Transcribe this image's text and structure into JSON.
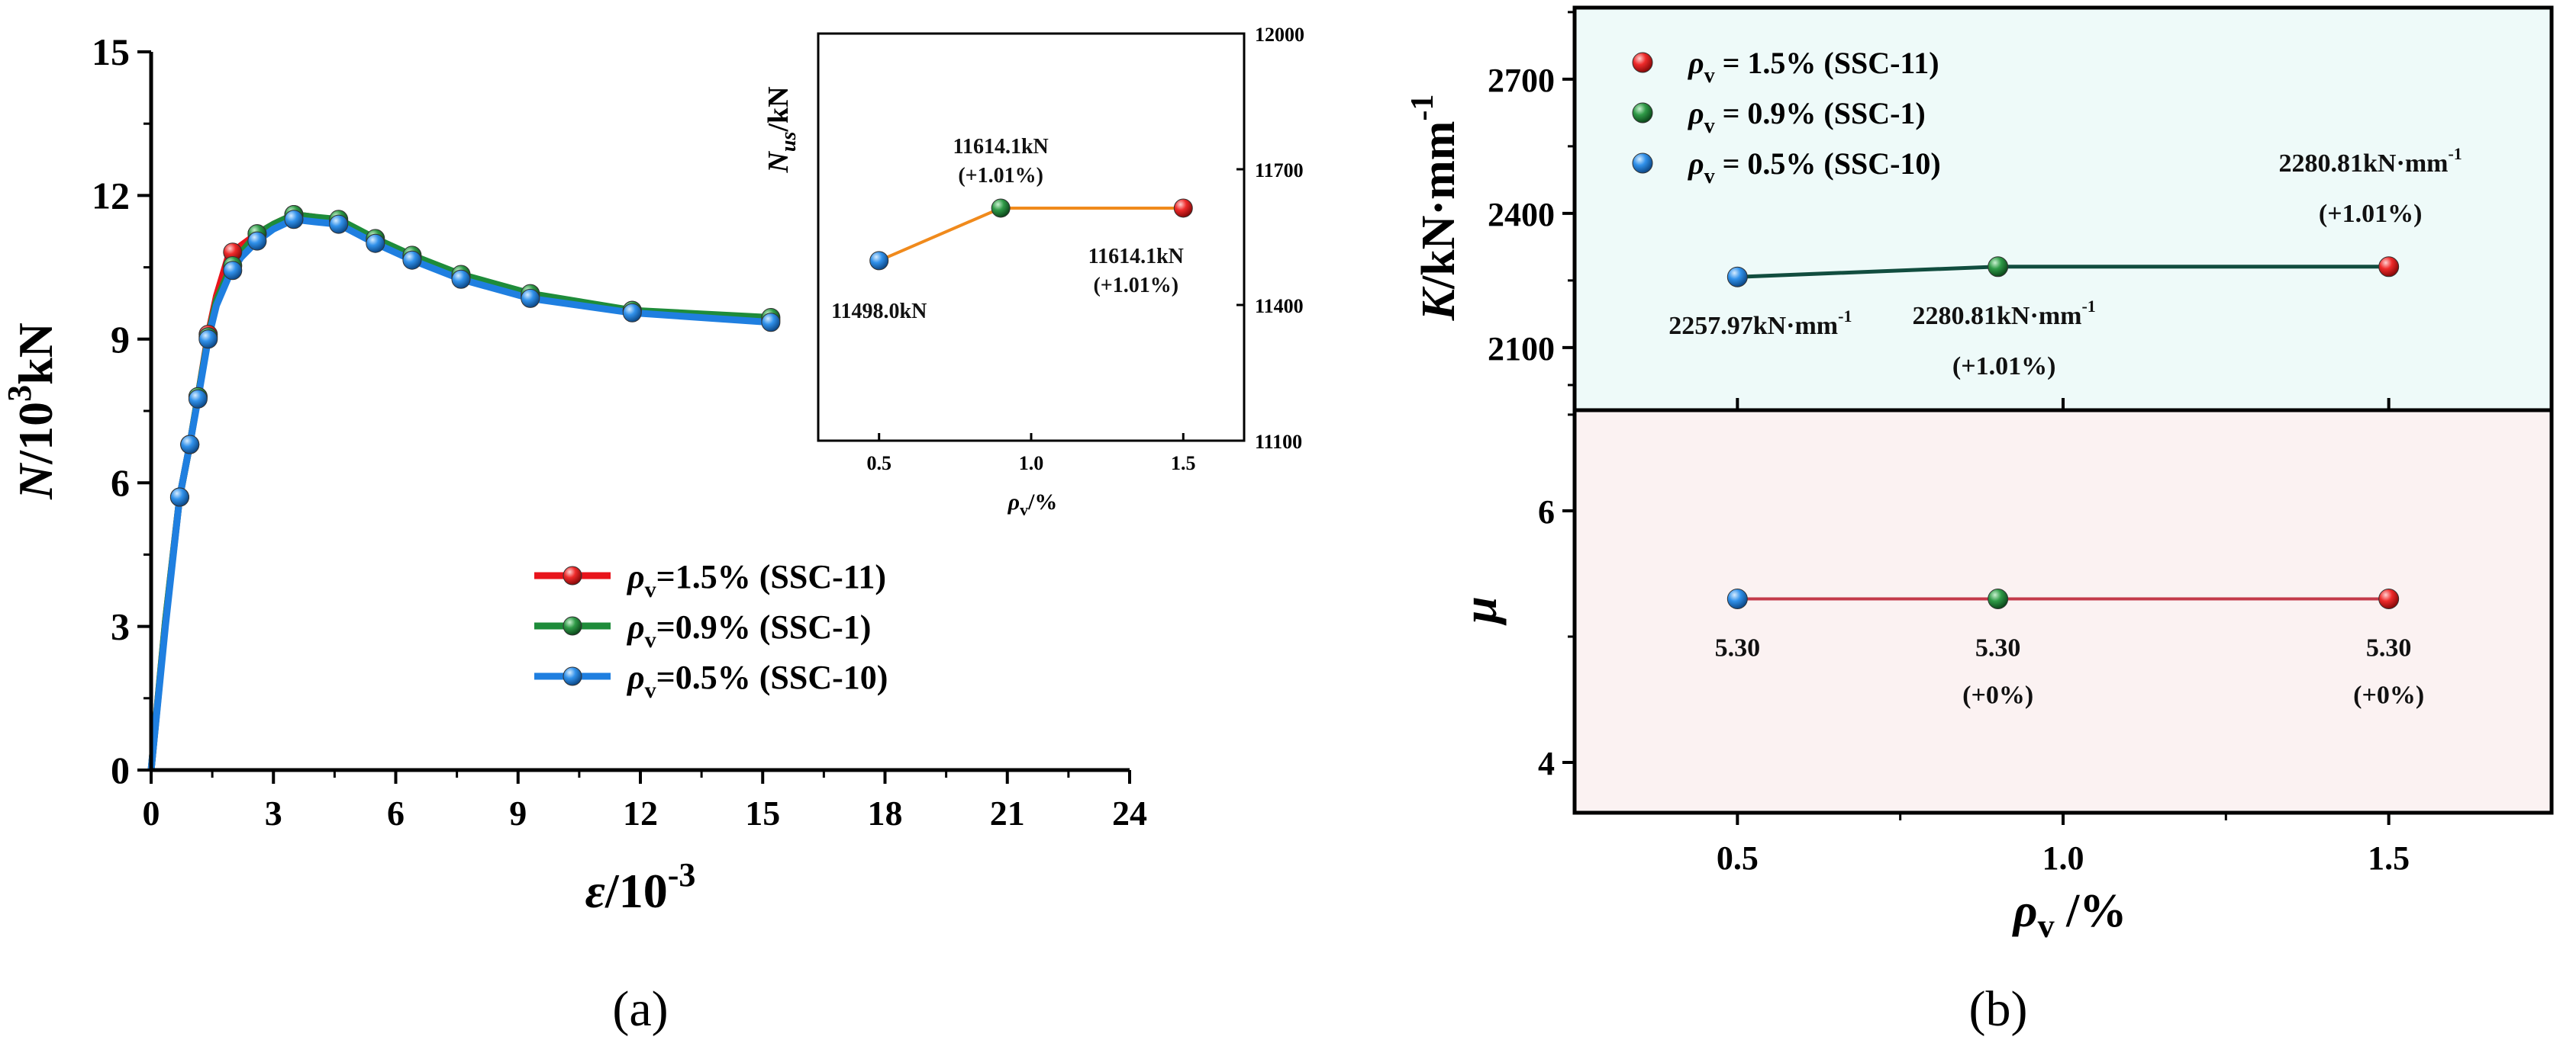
{
  "chart_data": [
    {
      "type": "line",
      "panel_label": "(a)",
      "xlabel_sym": "ε",
      "xlabel_unit": "/10",
      "xlabel_exp": "-3",
      "ylabel_sym": "N",
      "ylabel_unit": "/10",
      "ylabel_exp": "3",
      "ylabel_tail": "kN",
      "xlim": [
        0,
        24
      ],
      "ylim": [
        0,
        15
      ],
      "xticks": [
        "0",
        "3",
        "6",
        "9",
        "12",
        "15",
        "18",
        "21",
        "24"
      ],
      "yticks": [
        "0",
        "3",
        "6",
        "9",
        "12",
        "15"
      ],
      "legend_location": "center-right",
      "series": [
        {
          "name": "SSC-11",
          "legend_label": "=1.5% (SSC-11)",
          "color": "#e8141b",
          "x": [
            0,
            0.35,
            0.7,
            0.95,
            1.15,
            1.4,
            1.6,
            1.9,
            2.2,
            2.6,
            3.0,
            3.5,
            4.0,
            4.6,
            5.5,
            6.4,
            7.6,
            9.3,
            11.8,
            15.2
          ],
          "y": [
            0,
            3.1,
            5.7,
            6.8,
            7.8,
            9.1,
            9.9,
            10.75,
            10.95,
            11.2,
            11.4,
            11.6,
            11.55,
            11.45,
            11.05,
            10.7,
            10.3,
            9.9,
            9.6,
            9.4
          ]
        },
        {
          "name": "SSC-1",
          "legend_label": "=0.9% (SSC-1)",
          "color": "#1e8c3a",
          "x": [
            0,
            0.35,
            0.7,
            0.95,
            1.15,
            1.4,
            1.6,
            1.9,
            2.2,
            2.6,
            3.0,
            3.5,
            4.0,
            4.6,
            5.5,
            6.4,
            7.6,
            9.3,
            11.8,
            15.2
          ],
          "y": [
            0,
            3.1,
            5.7,
            6.8,
            7.8,
            9.05,
            9.8,
            10.4,
            10.8,
            11.2,
            11.4,
            11.6,
            11.55,
            11.5,
            11.1,
            10.75,
            10.35,
            9.95,
            9.6,
            9.45
          ]
        },
        {
          "name": "SSC-10",
          "legend_label": "=0.5% (SSC-10)",
          "color": "#1f7fe0",
          "x": [
            0,
            0.35,
            0.7,
            0.95,
            1.15,
            1.4,
            1.6,
            1.9,
            2.2,
            2.6,
            3.0,
            3.5,
            4.0,
            4.6,
            5.5,
            6.4,
            7.6,
            9.3,
            11.8,
            15.2
          ],
          "y": [
            0,
            3.0,
            5.7,
            6.8,
            7.75,
            9.0,
            9.7,
            10.3,
            10.7,
            11.05,
            11.3,
            11.5,
            11.45,
            11.4,
            11.0,
            10.65,
            10.25,
            9.85,
            9.55,
            9.35
          ]
        }
      ],
      "marker_x": [
        0.7,
        0.95,
        1.15,
        1.4,
        2.0,
        2.6,
        3.5,
        4.6,
        5.5,
        6.4,
        7.6,
        9.3,
        11.8,
        15.2
      ]
    },
    {
      "type": "line",
      "inset_of": "(a)",
      "ylabel": "N_us/kN",
      "ylabel_sym": "N",
      "ylabel_sub": "us",
      "ylabel_unit": "/kN",
      "xlabel_sym": "ρ",
      "xlabel_sub": "v",
      "xlabel_unit": "/%",
      "xlim": [
        0.3,
        1.7
      ],
      "ylim": [
        11100,
        12000
      ],
      "xticks": [
        "0.5",
        "1.0",
        "1.5"
      ],
      "yticks": [
        "11100",
        "11400",
        "11700",
        "12000"
      ],
      "points": [
        {
          "x": 0.5,
          "y": 11498.0,
          "color": "#1f7fe0",
          "label": "11498.0kN",
          "change": ""
        },
        {
          "x": 0.9,
          "y": 11614.1,
          "color": "#1e8c3a",
          "label": "11614.1kN",
          "change": "(+1.01%)"
        },
        {
          "x": 1.5,
          "y": 11614.1,
          "color": "#e8141b",
          "label": "11614.1kN",
          "change": "(+1.01%)"
        }
      ],
      "line_color": "#f08a1c"
    },
    {
      "type": "line",
      "panel_label": "(b)",
      "ylabel_sym": "K",
      "ylabel_unit": "/kN·mm",
      "ylabel_exp": "-1",
      "xlim": [
        0.25,
        1.75
      ],
      "ylim": [
        1960,
        2860
      ],
      "yticks": [
        "2100",
        "2400",
        "2700"
      ],
      "background": "#eefaf9",
      "line_color": "#114d3f",
      "legend_location": "top-left",
      "points": [
        {
          "x": 0.5,
          "y": 2257.97,
          "color": "#1f7fe0",
          "label": "2257.97kN·mm",
          "label_exp": "-1",
          "change": ""
        },
        {
          "x": 0.9,
          "y": 2280.81,
          "color": "#1e8c3a",
          "label": "2280.81kN·mm",
          "label_exp": "-1",
          "change": "(+1.01%)"
        },
        {
          "x": 1.5,
          "y": 2280.81,
          "color": "#e8141b",
          "label": "2280.81kN·mm",
          "label_exp": "-1",
          "change": "(+1.01%)"
        }
      ],
      "legend": [
        {
          "label": " = 1.5% (SSC-11)",
          "color": "#e8141b"
        },
        {
          "label": " = 0.9% (SSC-1)",
          "color": "#1e8c3a"
        },
        {
          "label": " = 0.5% (SSC-10)",
          "color": "#1f7fe0"
        }
      ]
    },
    {
      "type": "line",
      "ylabel_sym": "μ",
      "xlabel_sym": "ρ",
      "xlabel_sub": "v",
      "xlabel_unit": " /%",
      "xlim": [
        0.25,
        1.75
      ],
      "ylim": [
        3.6,
        6.8
      ],
      "xticks": [
        "0.5",
        "1.0",
        "1.5"
      ],
      "yticks": [
        "4",
        "6"
      ],
      "background": "#fbf2f2",
      "line_color": "#c33a4a",
      "points": [
        {
          "x": 0.5,
          "y": 5.3,
          "color": "#1f7fe0",
          "label": "5.30",
          "change": ""
        },
        {
          "x": 0.9,
          "y": 5.3,
          "color": "#1e8c3a",
          "label": "5.30",
          "change": "(+0%)"
        },
        {
          "x": 1.5,
          "y": 5.3,
          "color": "#e8141b",
          "label": "5.30",
          "change": "(+0%)"
        }
      ]
    }
  ]
}
